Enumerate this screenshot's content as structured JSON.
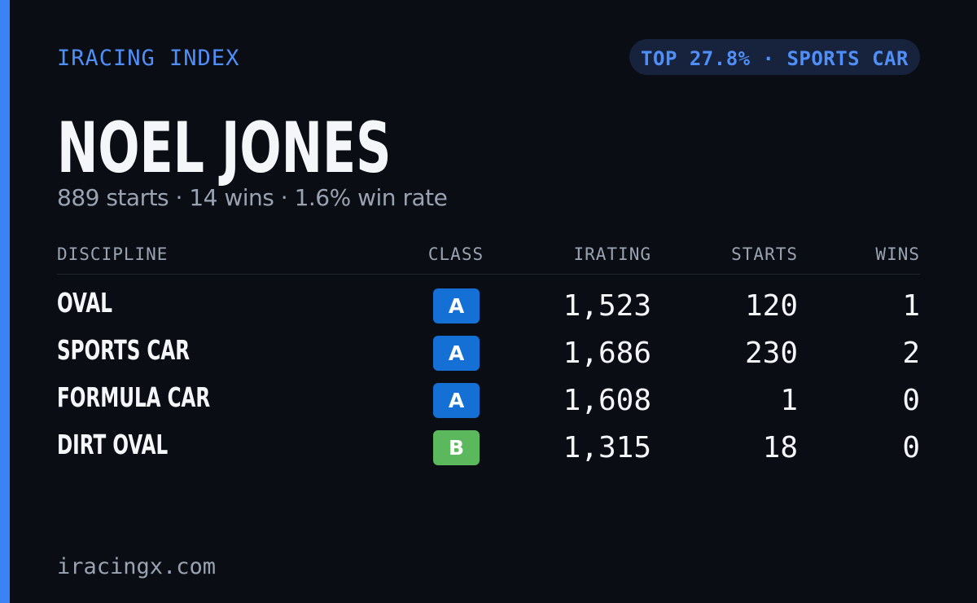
{
  "header": {
    "label": "IRACING INDEX",
    "badge": "TOP 27.8% · SPORTS CAR"
  },
  "profile": {
    "name": "NOEL JONES",
    "summary": "889 starts · 14 wins · 1.6% win rate"
  },
  "table": {
    "columns": [
      "DISCIPLINE",
      "CLASS",
      "IRATING",
      "STARTS",
      "WINS"
    ],
    "rows": [
      [
        "OVAL",
        "A",
        "1,523",
        "120",
        "1"
      ],
      [
        "SPORTS CAR",
        "A",
        "1,686",
        "230",
        "2"
      ],
      [
        "FORMULA CAR",
        "A",
        "1,608",
        "1",
        "0"
      ],
      [
        "DIRT OVAL",
        "B",
        "1,315",
        "18",
        "0"
      ]
    ],
    "class_colors": {
      "A": "#1570d6",
      "B": "#5cb85c"
    }
  },
  "footer": {
    "site": "iracingx.com"
  }
}
